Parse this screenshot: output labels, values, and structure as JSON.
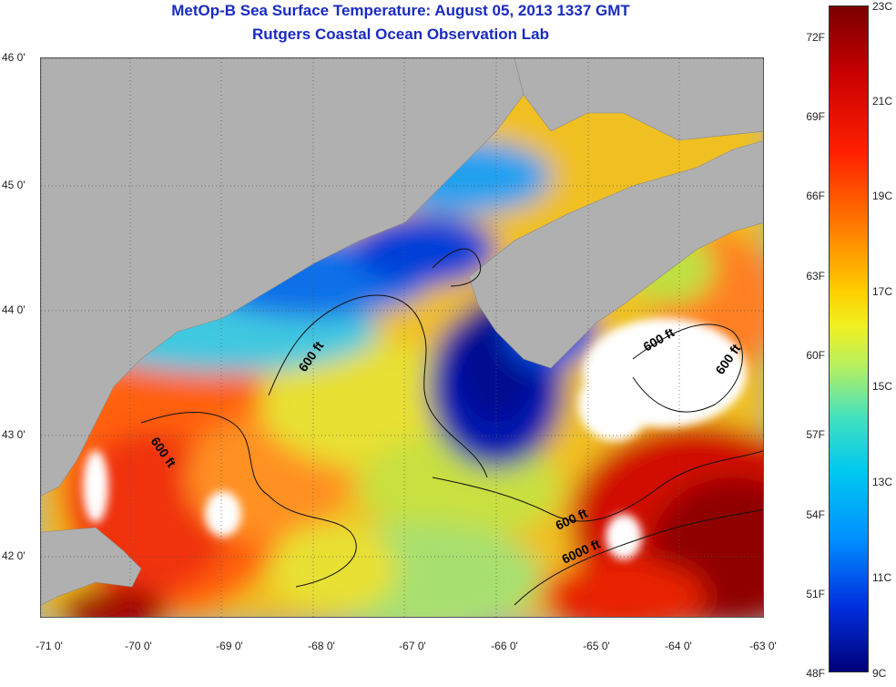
{
  "header": {
    "title_line1": "MetOp-B Sea Surface Temperature:  August 05, 2013 1337 GMT",
    "title_line2": "Rutgers Coastal Ocean Observation Lab"
  },
  "map": {
    "lat_labels": [
      "46 0'",
      "45 0'",
      "44 0'",
      "43 0'",
      "42 0'"
    ],
    "lon_labels": [
      "-71 0'",
      "-70 0'",
      "-69 0'",
      "-68 0'",
      "-67 0'",
      "-66 0'",
      "-65 0'",
      "-64 0'",
      "-63 0'"
    ],
    "contour_labels": {
      "c1": "600 ft",
      "c2": "600 ft",
      "c3": "600 ft",
      "c4": "600 ft",
      "c5": "600 ft",
      "c6": "6000 ft"
    },
    "colors": {
      "land": "#b0b0b0",
      "cloud": "#ffffff",
      "cold": "#0020c8",
      "warm": "#c00000"
    }
  },
  "colorbar": {
    "fahrenheit_labels": [
      "72F",
      "69F",
      "66F",
      "63F",
      "60F",
      "57F",
      "54F",
      "51F",
      "48F"
    ],
    "celsius_labels": [
      "23C",
      "21C",
      "19C",
      "17C",
      "15C",
      "13C",
      "11C",
      "9C"
    ]
  }
}
